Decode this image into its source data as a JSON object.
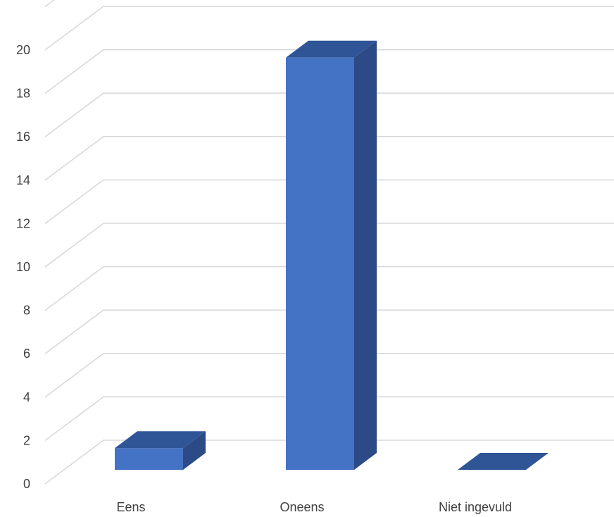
{
  "chart_data": {
    "type": "bar",
    "style": "3d-column",
    "categories": [
      "Eens",
      "Oneens",
      "Niet ingevuld"
    ],
    "values": [
      1,
      19,
      0
    ],
    "ylim": [
      0,
      22
    ],
    "yticks": [
      "0",
      "2",
      "4",
      "6",
      "8",
      "10",
      "12",
      "14",
      "16",
      "18",
      "20"
    ],
    "grid": true,
    "legend": "none",
    "title": "",
    "xlabel": "",
    "ylabel": "",
    "colors": {
      "front": "#4472C4",
      "top": "#2F5597",
      "side": "#2C4A85",
      "grid": "#D9D9D9",
      "text": "#404040"
    }
  }
}
